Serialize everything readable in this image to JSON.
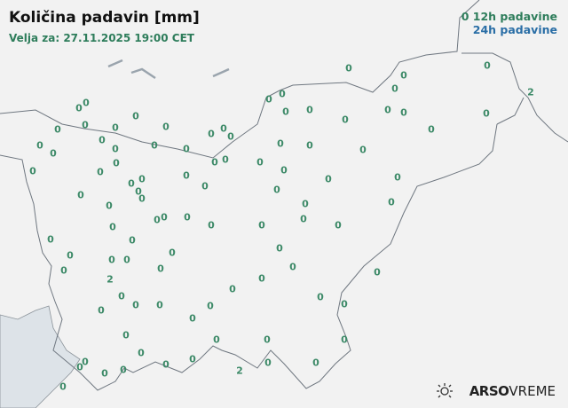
{
  "title": "Količina padavin [mm]",
  "valid_time": "Velja za: 27.11.2025 19:00 CET",
  "legend": {
    "sample_value": "0",
    "label_12h": "12h padavine",
    "label_24h": "24h padavine"
  },
  "colors": {
    "value_12h": "#3d8a68",
    "label_12h": "#2e7d5b",
    "label_24h": "#2a6ea6",
    "sea": "#dde3e8",
    "border": "#6f7780"
  },
  "logo": {
    "brand": "ARSO",
    "product": "VREME",
    "icon": "sun-weather-icon"
  },
  "station_values": [
    "0",
    "0",
    "0",
    "2",
    "0",
    "0",
    "0",
    "0",
    "0",
    "0",
    "0",
    "0",
    "0",
    "0",
    "0",
    "0",
    "0",
    "0",
    "0",
    "0",
    "0",
    "0",
    "0",
    "0",
    "0",
    "0",
    "0",
    "0",
    "0",
    "0",
    "0",
    "0",
    "0",
    "0",
    "0",
    "0",
    "0",
    "0",
    "0",
    "0",
    "0",
    "0",
    "0",
    "0",
    "0",
    "0",
    "0",
    "0",
    "0",
    "0",
    "0",
    "0",
    "0",
    "0",
    "0",
    "0",
    "0",
    "0",
    "0",
    "0",
    "0",
    "0",
    "0",
    "0",
    "0",
    "0",
    "0",
    "0",
    "0",
    "0",
    "0",
    "0",
    "2",
    "0",
    "0",
    "0",
    "0",
    "0",
    "0",
    "0",
    "0",
    "0",
    "0",
    "0",
    "0",
    "0",
    "0",
    "0",
    "0",
    "0",
    "0",
    "0",
    "0",
    "0",
    "2",
    "0",
    "0",
    "0",
    "0",
    "0",
    "0"
  ]
}
